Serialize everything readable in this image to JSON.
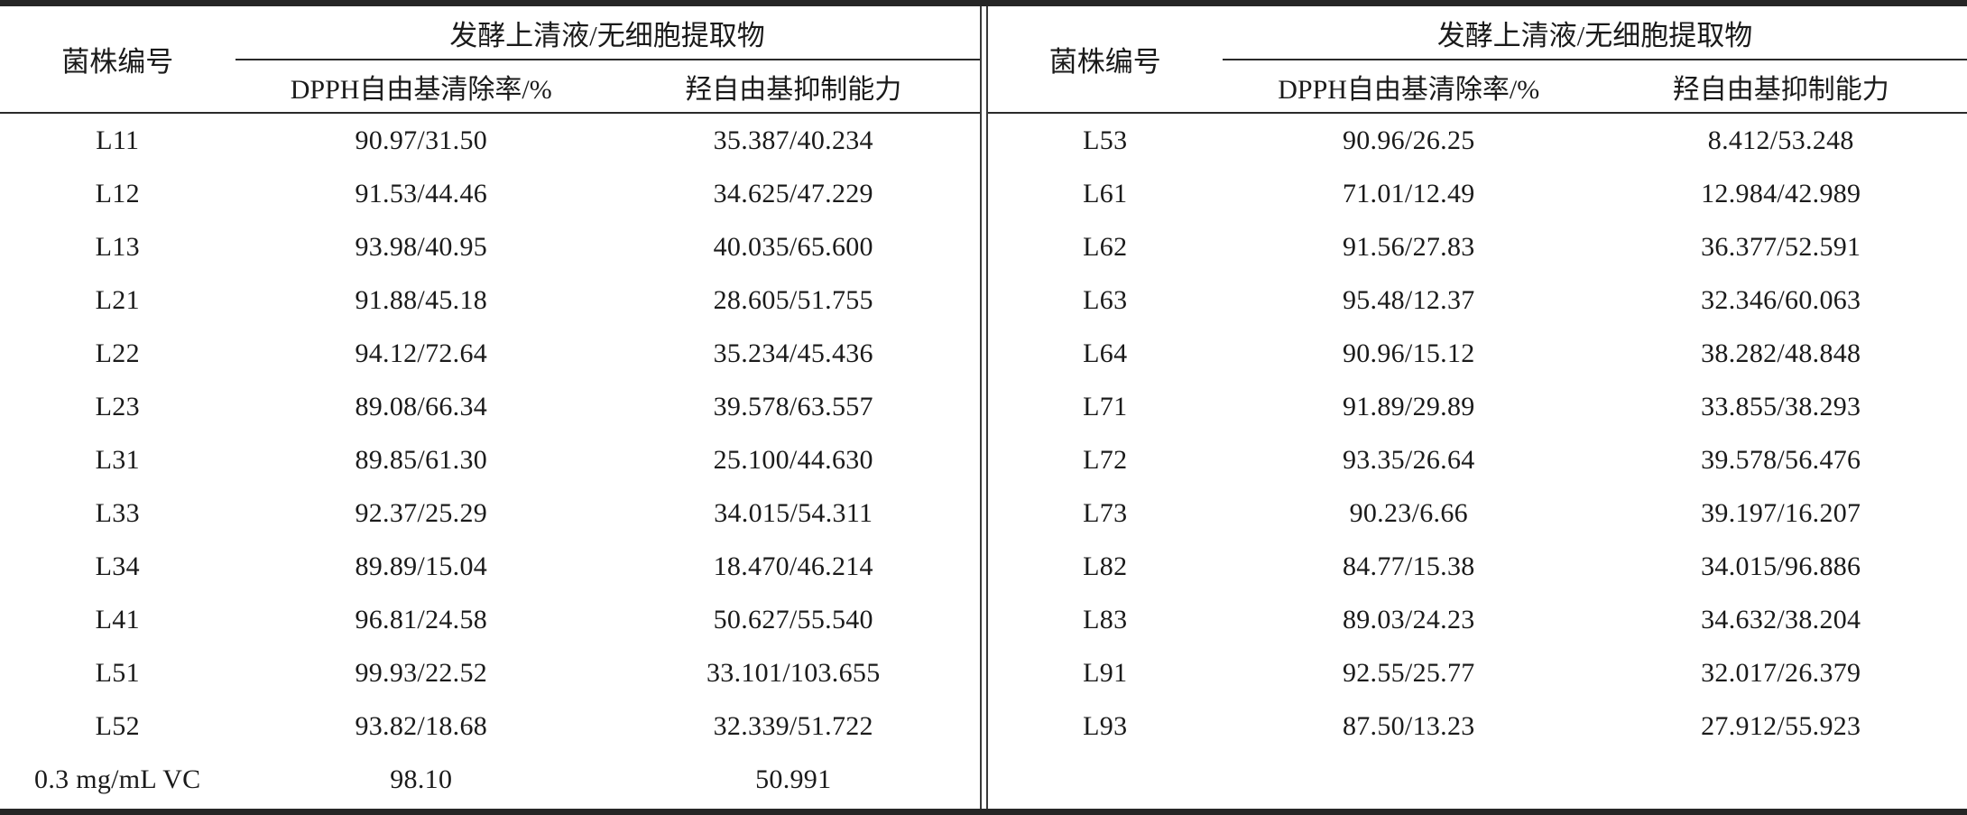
{
  "table_header": {
    "strain_id": "菌株编号",
    "group": "发酵上清液/无细胞提取物",
    "dpph": "DPPH自由基清除率/%",
    "hydroxyl": "羟自由基抑制能力"
  },
  "left_table": {
    "rows": [
      {
        "strain": "L11",
        "dpph": "90.97/31.50",
        "hydroxyl": "35.387/40.234"
      },
      {
        "strain": "L12",
        "dpph": "91.53/44.46",
        "hydroxyl": "34.625/47.229"
      },
      {
        "strain": "L13",
        "dpph": "93.98/40.95",
        "hydroxyl": "40.035/65.600"
      },
      {
        "strain": "L21",
        "dpph": "91.88/45.18",
        "hydroxyl": "28.605/51.755"
      },
      {
        "strain": "L22",
        "dpph": "94.12/72.64",
        "hydroxyl": "35.234/45.436"
      },
      {
        "strain": "L23",
        "dpph": "89.08/66.34",
        "hydroxyl": "39.578/63.557"
      },
      {
        "strain": "L31",
        "dpph": "89.85/61.30",
        "hydroxyl": "25.100/44.630"
      },
      {
        "strain": "L33",
        "dpph": "92.37/25.29",
        "hydroxyl": "34.015/54.311"
      },
      {
        "strain": "L34",
        "dpph": "89.89/15.04",
        "hydroxyl": "18.470/46.214"
      },
      {
        "strain": "L41",
        "dpph": "96.81/24.58",
        "hydroxyl": "50.627/55.540"
      },
      {
        "strain": "L51",
        "dpph": "99.93/22.52",
        "hydroxyl": "33.101/103.655"
      },
      {
        "strain": "L52",
        "dpph": "93.82/18.68",
        "hydroxyl": "32.339/51.722"
      },
      {
        "strain": "0.3 mg/mL VC",
        "dpph": "98.10",
        "hydroxyl": "50.991"
      }
    ]
  },
  "right_table": {
    "rows": [
      {
        "strain": "L53",
        "dpph": "90.96/26.25",
        "hydroxyl": "8.412/53.248"
      },
      {
        "strain": "L61",
        "dpph": "71.01/12.49",
        "hydroxyl": "12.984/42.989"
      },
      {
        "strain": "L62",
        "dpph": "91.56/27.83",
        "hydroxyl": "36.377/52.591"
      },
      {
        "strain": "L63",
        "dpph": "95.48/12.37",
        "hydroxyl": "32.346/60.063"
      },
      {
        "strain": "L64",
        "dpph": "90.96/15.12",
        "hydroxyl": "38.282/48.848"
      },
      {
        "strain": "L71",
        "dpph": "91.89/29.89",
        "hydroxyl": "33.855/38.293"
      },
      {
        "strain": "L72",
        "dpph": "93.35/26.64",
        "hydroxyl": "39.578/56.476"
      },
      {
        "strain": "L73",
        "dpph": "90.23/6.66",
        "hydroxyl": "39.197/16.207"
      },
      {
        "strain": "L82",
        "dpph": "84.77/15.38",
        "hydroxyl": "34.015/96.886"
      },
      {
        "strain": "L83",
        "dpph": "89.03/24.23",
        "hydroxyl": "34.632/38.204"
      },
      {
        "strain": "L91",
        "dpph": "92.55/25.77",
        "hydroxyl": "32.017/26.379"
      },
      {
        "strain": "L93",
        "dpph": "87.50/13.23",
        "hydroxyl": "27.912/55.923"
      }
    ]
  },
  "colors": {
    "rule": "#262626",
    "text": "#1a1a1a"
  }
}
